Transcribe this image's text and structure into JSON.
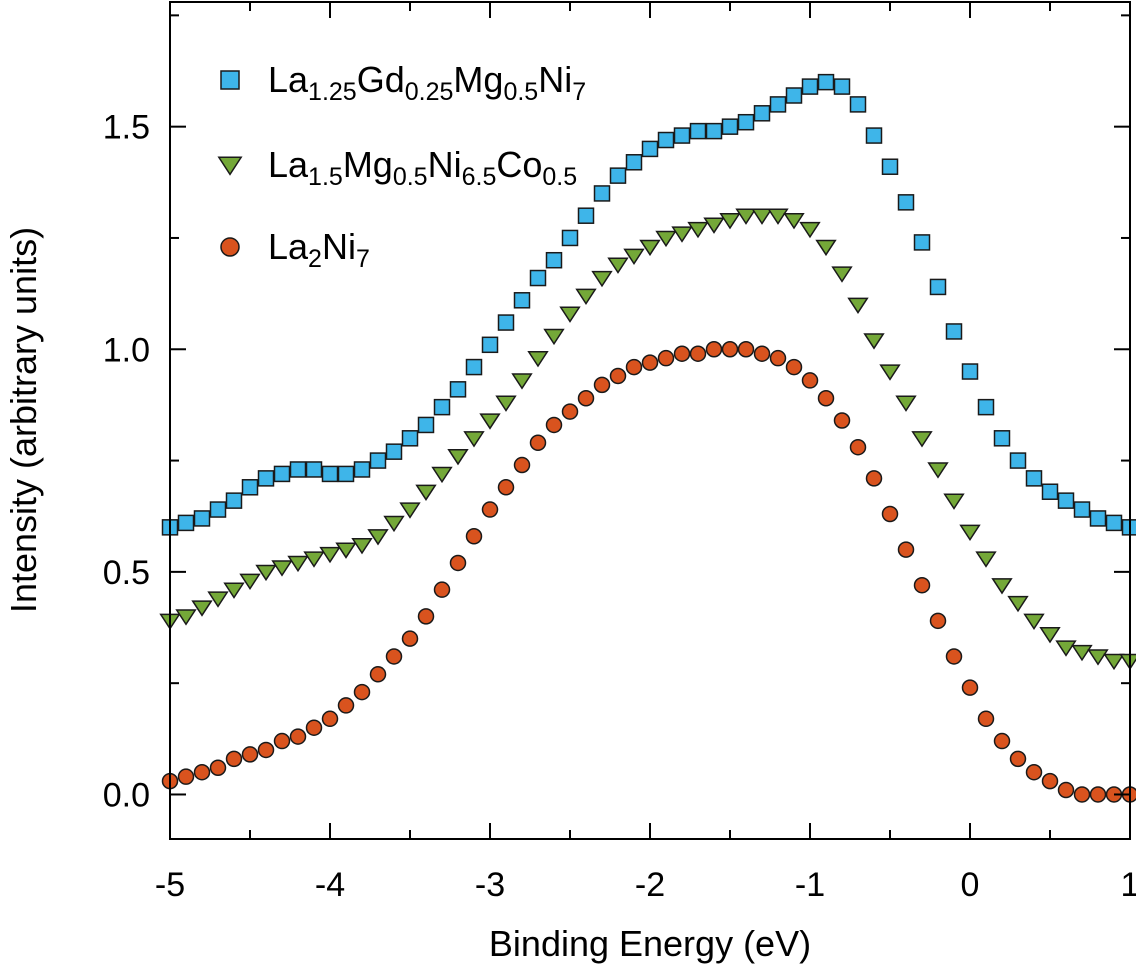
{
  "chart_data": {
    "type": "scatter",
    "title": "",
    "xlabel": "Binding Energy (eV)",
    "ylabel": "Intensity (arbitrary units)",
    "xlim": [
      -5,
      1
    ],
    "ylim": [
      -0.1,
      1.78
    ],
    "xticks": [
      {
        "value": -5,
        "label": "-5"
      },
      {
        "value": -4,
        "label": "-4"
      },
      {
        "value": -3,
        "label": "-3"
      },
      {
        "value": -2,
        "label": "-2"
      },
      {
        "value": -1,
        "label": "-1"
      },
      {
        "value": 0,
        "label": "0"
      },
      {
        "value": 1,
        "label": "1"
      }
    ],
    "yticks": [
      {
        "value": 0.0,
        "label": "0.0"
      },
      {
        "value": 0.5,
        "label": "0.5"
      },
      {
        "value": 1.0,
        "label": "1.0"
      },
      {
        "value": 1.5,
        "label": "1.5"
      }
    ],
    "grid": false,
    "legend_position": "top-left",
    "series": [
      {
        "name": "La1.25Gd0.25Mg0.5Ni7",
        "legend": [
          {
            "text": "La",
            "sub": false
          },
          {
            "text": "1.25",
            "sub": true
          },
          {
            "text": "Gd",
            "sub": false
          },
          {
            "text": "0.25",
            "sub": true
          },
          {
            "text": "Mg",
            "sub": false
          },
          {
            "text": "0.5",
            "sub": true
          },
          {
            "text": "Ni",
            "sub": false
          },
          {
            "text": "7",
            "sub": true
          }
        ],
        "marker": "square",
        "color": "#3EB5E9",
        "x": [
          -5.0,
          -4.9,
          -4.8,
          -4.7,
          -4.6,
          -4.5,
          -4.4,
          -4.3,
          -4.2,
          -4.1,
          -4.0,
          -3.9,
          -3.8,
          -3.7,
          -3.6,
          -3.5,
          -3.4,
          -3.3,
          -3.2,
          -3.1,
          -3.0,
          -2.9,
          -2.8,
          -2.7,
          -2.6,
          -2.5,
          -2.4,
          -2.3,
          -2.2,
          -2.1,
          -2.0,
          -1.9,
          -1.8,
          -1.7,
          -1.6,
          -1.5,
          -1.4,
          -1.3,
          -1.2,
          -1.1,
          -1.0,
          -0.9,
          -0.8,
          -0.7,
          -0.6,
          -0.5,
          -0.4,
          -0.3,
          -0.2,
          -0.1,
          0.0,
          0.1,
          0.2,
          0.3,
          0.4,
          0.5,
          0.6,
          0.7,
          0.8,
          0.9,
          1.0
        ],
        "y": [
          0.6,
          0.61,
          0.62,
          0.64,
          0.66,
          0.69,
          0.71,
          0.72,
          0.73,
          0.73,
          0.72,
          0.72,
          0.73,
          0.75,
          0.77,
          0.8,
          0.83,
          0.87,
          0.91,
          0.96,
          1.01,
          1.06,
          1.11,
          1.16,
          1.2,
          1.25,
          1.3,
          1.35,
          1.39,
          1.42,
          1.45,
          1.47,
          1.48,
          1.49,
          1.49,
          1.5,
          1.51,
          1.53,
          1.55,
          1.57,
          1.59,
          1.6,
          1.59,
          1.55,
          1.48,
          1.41,
          1.33,
          1.24,
          1.14,
          1.04,
          0.95,
          0.87,
          0.8,
          0.75,
          0.71,
          0.68,
          0.66,
          0.64,
          0.62,
          0.61,
          0.6
        ]
      },
      {
        "name": "La1.5Mg0.5Ni6.5Co0.5",
        "legend": [
          {
            "text": "La",
            "sub": false
          },
          {
            "text": "1.5",
            "sub": true
          },
          {
            "text": "Mg",
            "sub": false
          },
          {
            "text": "0.5",
            "sub": true
          },
          {
            "text": "Ni",
            "sub": false
          },
          {
            "text": "6.5",
            "sub": true
          },
          {
            "text": "Co",
            "sub": false
          },
          {
            "text": "0.5",
            "sub": true
          }
        ],
        "marker": "triangle-down",
        "color": "#74A838",
        "x": [
          -5.0,
          -4.9,
          -4.8,
          -4.7,
          -4.6,
          -4.5,
          -4.4,
          -4.3,
          -4.2,
          -4.1,
          -4.0,
          -3.9,
          -3.8,
          -3.7,
          -3.6,
          -3.5,
          -3.4,
          -3.3,
          -3.2,
          -3.1,
          -3.0,
          -2.9,
          -2.8,
          -2.7,
          -2.6,
          -2.5,
          -2.4,
          -2.3,
          -2.2,
          -2.1,
          -2.0,
          -1.9,
          -1.8,
          -1.7,
          -1.6,
          -1.5,
          -1.4,
          -1.3,
          -1.2,
          -1.1,
          -1.0,
          -0.9,
          -0.8,
          -0.7,
          -0.6,
          -0.5,
          -0.4,
          -0.3,
          -0.2,
          -0.1,
          0.0,
          0.1,
          0.2,
          0.3,
          0.4,
          0.5,
          0.6,
          0.7,
          0.8,
          0.9,
          1.0
        ],
        "y": [
          0.39,
          0.4,
          0.42,
          0.44,
          0.46,
          0.48,
          0.5,
          0.51,
          0.52,
          0.53,
          0.54,
          0.55,
          0.56,
          0.58,
          0.61,
          0.64,
          0.68,
          0.72,
          0.76,
          0.8,
          0.84,
          0.88,
          0.93,
          0.98,
          1.03,
          1.08,
          1.12,
          1.16,
          1.19,
          1.21,
          1.23,
          1.25,
          1.26,
          1.27,
          1.28,
          1.29,
          1.3,
          1.3,
          1.3,
          1.29,
          1.27,
          1.23,
          1.17,
          1.1,
          1.02,
          0.95,
          0.88,
          0.8,
          0.73,
          0.66,
          0.59,
          0.53,
          0.47,
          0.43,
          0.39,
          0.36,
          0.33,
          0.32,
          0.31,
          0.3,
          0.3
        ]
      },
      {
        "name": "La2Ni7",
        "legend": [
          {
            "text": "La",
            "sub": false
          },
          {
            "text": "2",
            "sub": true
          },
          {
            "text": "Ni",
            "sub": false
          },
          {
            "text": "7",
            "sub": true
          }
        ],
        "marker": "circle",
        "color": "#D9531E",
        "x": [
          -5.0,
          -4.9,
          -4.8,
          -4.7,
          -4.6,
          -4.5,
          -4.4,
          -4.3,
          -4.2,
          -4.1,
          -4.0,
          -3.9,
          -3.8,
          -3.7,
          -3.6,
          -3.5,
          -3.4,
          -3.3,
          -3.2,
          -3.1,
          -3.0,
          -2.9,
          -2.8,
          -2.7,
          -2.6,
          -2.5,
          -2.4,
          -2.3,
          -2.2,
          -2.1,
          -2.0,
          -1.9,
          -1.8,
          -1.7,
          -1.6,
          -1.5,
          -1.4,
          -1.3,
          -1.2,
          -1.1,
          -1.0,
          -0.9,
          -0.8,
          -0.7,
          -0.6,
          -0.5,
          -0.4,
          -0.3,
          -0.2,
          -0.1,
          0.0,
          0.1,
          0.2,
          0.3,
          0.4,
          0.5,
          0.6,
          0.7,
          0.8,
          0.9,
          1.0
        ],
        "y": [
          0.03,
          0.04,
          0.05,
          0.06,
          0.08,
          0.09,
          0.1,
          0.12,
          0.13,
          0.15,
          0.17,
          0.2,
          0.23,
          0.27,
          0.31,
          0.35,
          0.4,
          0.46,
          0.52,
          0.58,
          0.64,
          0.69,
          0.74,
          0.79,
          0.83,
          0.86,
          0.89,
          0.92,
          0.94,
          0.96,
          0.97,
          0.98,
          0.99,
          0.99,
          1.0,
          1.0,
          1.0,
          0.99,
          0.98,
          0.96,
          0.93,
          0.89,
          0.84,
          0.78,
          0.71,
          0.63,
          0.55,
          0.47,
          0.39,
          0.31,
          0.24,
          0.17,
          0.12,
          0.08,
          0.05,
          0.03,
          0.01,
          0.0,
          0.0,
          0.0,
          0.0
        ]
      }
    ]
  }
}
